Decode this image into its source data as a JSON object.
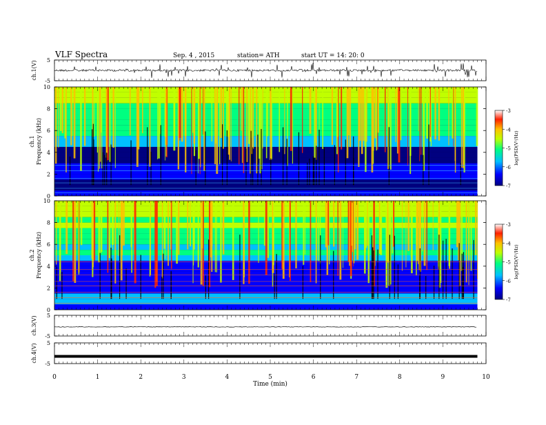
{
  "header": {
    "title": "VLF  Spectra",
    "date": "Sep. 4  , 2015",
    "station": "station= ATH",
    "start": "start  UT  =    14: 20: 0"
  },
  "colors": {
    "colormap": [
      "#000080",
      "#0000ff",
      "#00c0ff",
      "#00ff80",
      "#c0ff00",
      "#ffc000",
      "#ff2000",
      "#ffffff"
    ]
  },
  "chart_data": [
    {
      "type": "line",
      "id": "ch1-waveform",
      "ylabel": "ch.1(V)",
      "yticks": [
        "5",
        "-5"
      ],
      "ylim": [
        -5,
        5
      ],
      "xlim": [
        0,
        10
      ],
      "data_end_min": 9.8,
      "baseline": 0,
      "grid": false
    },
    {
      "type": "heatmap",
      "id": "ch1-spectrogram",
      "ylabel_channel": "ch.1",
      "ylabel": "Frequency  (kHz)",
      "yticks": [
        "0",
        "2",
        "4",
        "6",
        "8",
        "10"
      ],
      "ylim": [
        0,
        10
      ],
      "xlim": [
        0,
        10
      ],
      "data_end_min": 9.8,
      "colorbar": {
        "label": "log(PSD(V²/Hz)",
        "ticks": [
          "-3",
          "-4",
          "-5",
          "-6",
          "-7"
        ],
        "range": [
          -7,
          -3
        ]
      }
    },
    {
      "type": "heatmap",
      "id": "ch2-spectrogram",
      "ylabel_channel": "ch.2",
      "ylabel": "Frequency  (kHz)",
      "yticks": [
        "0",
        "2",
        "4",
        "6",
        "8",
        "10"
      ],
      "ylim": [
        0,
        10
      ],
      "xlim": [
        0,
        10
      ],
      "data_end_min": 9.8,
      "colorbar": {
        "label": "log(PSD(V²/Hz)",
        "ticks": [
          "-3",
          "-4",
          "-5",
          "-6",
          "-7"
        ],
        "range": [
          -7,
          -3
        ]
      }
    },
    {
      "type": "line",
      "id": "ch3-waveform",
      "ylabel": "ch.3(V)",
      "yticks": [
        "5",
        "-5"
      ],
      "ylim": [
        -5,
        5
      ],
      "xlim": [
        0,
        10
      ],
      "data_end_min": 9.8,
      "baseline": -0.6,
      "grid": false
    },
    {
      "type": "line",
      "id": "ch4-waveform",
      "ylabel": "ch.4(V)",
      "yticks": [
        "5",
        "-5"
      ],
      "ylim": [
        -5,
        5
      ],
      "xlim": [
        0,
        10
      ],
      "data_end_min": 9.8,
      "baseline": -1.5,
      "grid": false
    }
  ],
  "x_axis": {
    "label": "Time  (min)",
    "ticks": [
      "0",
      "1",
      "2",
      "3",
      "4",
      "5",
      "6",
      "7",
      "8",
      "9",
      "10"
    ]
  }
}
